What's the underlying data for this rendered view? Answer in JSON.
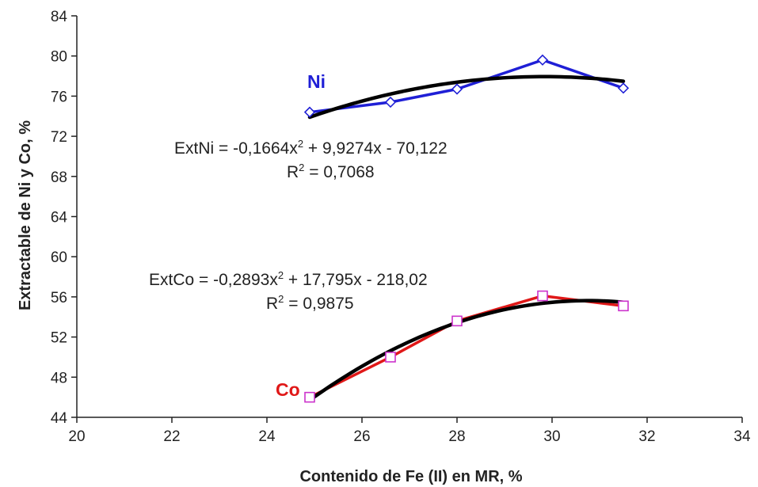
{
  "chart_data": {
    "type": "scatter",
    "title": "",
    "xlabel": "Contenido de Fe (II) en MR, %",
    "ylabel": "Extractable de Ni y Co, %",
    "xlim": [
      20,
      34
    ],
    "ylim": [
      44,
      84
    ],
    "x_ticks": [
      "20",
      "22",
      "24",
      "26",
      "28",
      "30",
      "32",
      "34"
    ],
    "y_ticks": [
      "44",
      "48",
      "52",
      "56",
      "60",
      "64",
      "68",
      "72",
      "76",
      "80",
      "84"
    ],
    "grid": false,
    "series": [
      {
        "name": "Ni",
        "color": "#1f1fd6",
        "marker": "diamond",
        "x": [
          24.9,
          26.6,
          28.0,
          29.8,
          31.5
        ],
        "y": [
          74.4,
          75.4,
          76.7,
          79.6,
          76.8
        ],
        "trendline": {
          "type": "polynomial",
          "coefficients": [
            -0.1664,
            9.9274,
            -70.122
          ],
          "equation": "ExtNi = -0,1664x",
          "equation_exp": "2",
          "equation_rest": " + 9,9274x  - 70,122",
          "r2_prefix": "R",
          "r2_exp": "2",
          "r2_rest": " = 0,7068"
        }
      },
      {
        "name": "Co",
        "color": "#e01818",
        "marker_color": "#cc33cc",
        "marker": "square",
        "x": [
          24.9,
          26.6,
          28.0,
          29.8,
          31.5
        ],
        "y": [
          46.0,
          50.0,
          53.6,
          56.1,
          55.1
        ],
        "trendline": {
          "type": "polynomial",
          "coefficients": [
            -0.2893,
            17.795,
            -218.02
          ],
          "equation": "ExtCo = -0,2893x",
          "equation_exp": "2",
          "equation_rest": " + 17,795x - 218,02",
          "r2_prefix": "R",
          "r2_exp": "2",
          "r2_rest": " = 0,9875"
        }
      }
    ]
  }
}
